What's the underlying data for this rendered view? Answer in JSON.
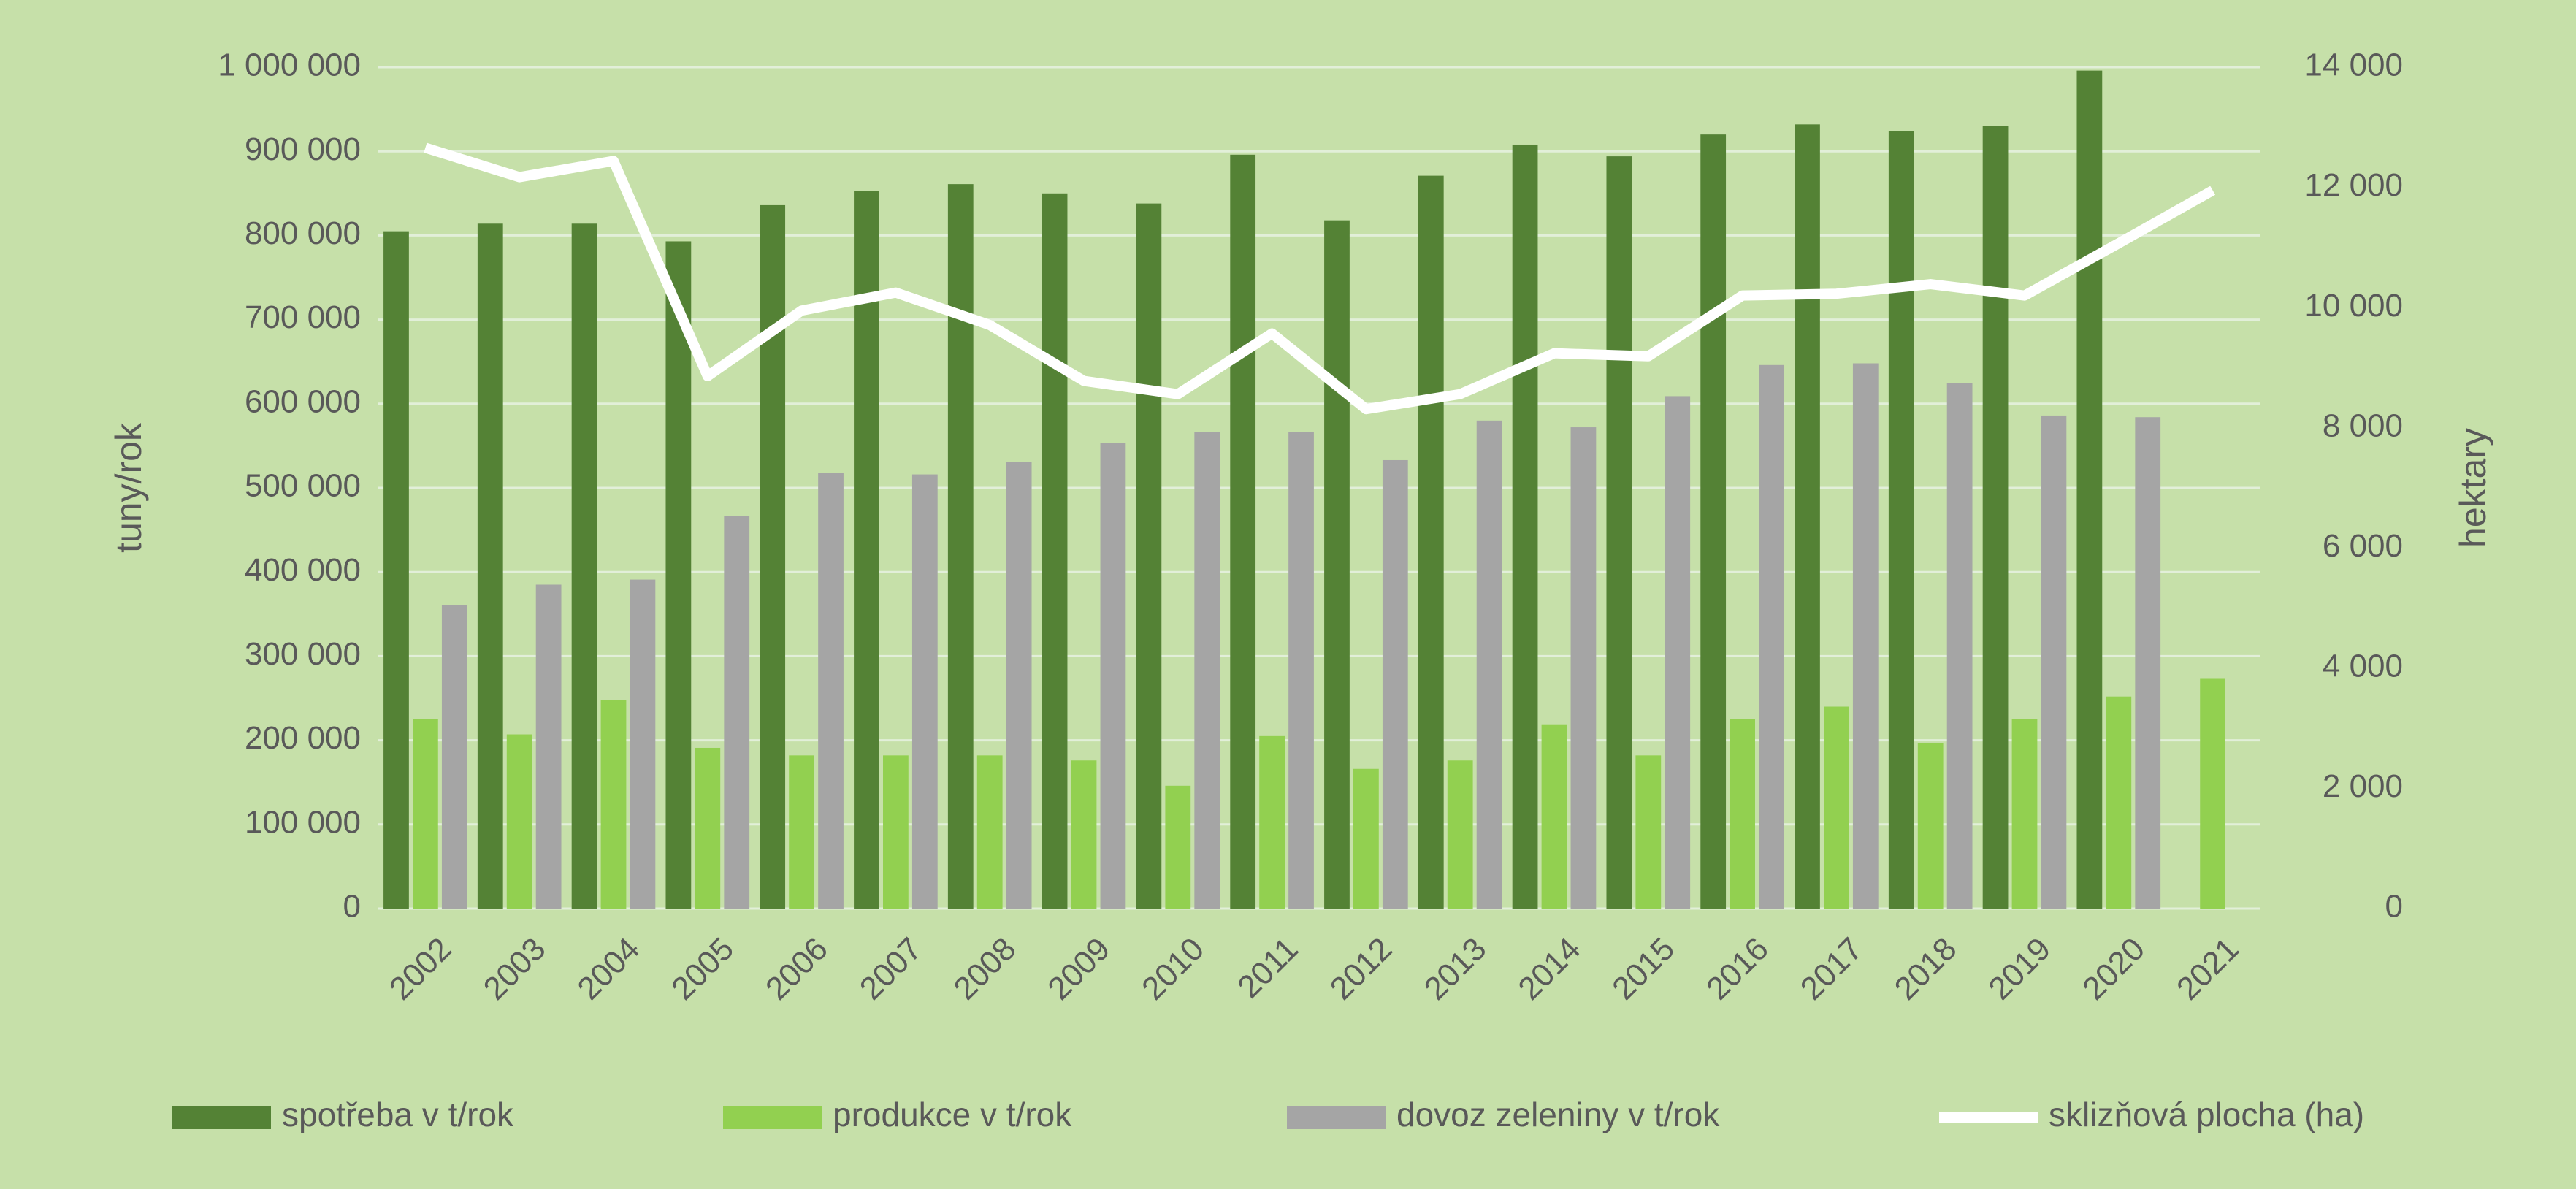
{
  "chart_data": {
    "type": "bar",
    "categories": [
      "2002",
      "2003",
      "2004",
      "2005",
      "2006",
      "2007",
      "2008",
      "2009",
      "2010",
      "2011",
      "2012",
      "2013",
      "2014",
      "2015",
      "2016",
      "2017",
      "2018",
      "2019",
      "2020",
      "2021"
    ],
    "series": [
      {
        "name": "spotřeba v t/rok",
        "color": "#548235",
        "type": "bar",
        "values": [
          805000,
          814000,
          814000,
          793000,
          836000,
          853000,
          861000,
          850000,
          838000,
          896000,
          818000,
          871000,
          908000,
          894000,
          920000,
          932000,
          924000,
          930000,
          996000,
          null
        ]
      },
      {
        "name": "produkce  v t/rok",
        "color": "#92d050",
        "type": "bar",
        "values": [
          225000,
          207000,
          248000,
          191000,
          182000,
          182000,
          182000,
          176000,
          146000,
          205000,
          166000,
          176000,
          219000,
          182000,
          225000,
          240000,
          197000,
          225000,
          252000,
          273000
        ]
      },
      {
        "name": "dovoz zeleniny v t/rok",
        "color": "#a5a5a5",
        "type": "bar",
        "values": [
          361000,
          385000,
          391000,
          467000,
          518000,
          516000,
          531000,
          553000,
          566000,
          566000,
          533000,
          580000,
          572000,
          609000,
          646000,
          648000,
          625000,
          586000,
          584000,
          null
        ]
      },
      {
        "name": "sklizňová plocha (ha)",
        "color": "#ffffff",
        "type": "line",
        "axis": "y2",
        "values": [
          12660,
          12170,
          12440,
          8860,
          9950,
          10250,
          9710,
          8780,
          8560,
          9570,
          8310,
          8560,
          9240,
          9190,
          10200,
          10230,
          10390,
          10200,
          11070,
          11950
        ]
      }
    ],
    "ylabel": "tuny/rok",
    "y2label": "hektary",
    "ylim": [
      0,
      1000000
    ],
    "yticks": [
      0,
      {
        "value": 100000,
        "label": "100 000"
      },
      {
        "value": 200000,
        "label": "200 000"
      },
      {
        "value": 300000,
        "label": "300 000"
      },
      {
        "value": 400000,
        "label": "400 000"
      },
      {
        "value": 500000,
        "label": "500 000"
      },
      {
        "value": 600000,
        "label": "600 000"
      },
      {
        "value": 700000,
        "label": "700 000"
      },
      {
        "value": 800000,
        "label": "800 000"
      },
      {
        "value": 900000,
        "label": "900 000"
      },
      {
        "value": 1000000,
        "label": "1 000 000"
      }
    ],
    "y2lim": [
      0,
      14000
    ],
    "y2ticks": [
      0,
      {
        "value": 2000,
        "label": "2 000"
      },
      {
        "value": 4000,
        "label": "4 000"
      },
      {
        "value": 6000,
        "label": "6 000"
      },
      {
        "value": 8000,
        "label": "8 000"
      },
      {
        "value": 10000,
        "label": "10 000"
      },
      {
        "value": 12000,
        "label": "12 000"
      },
      {
        "value": 14000,
        "label": "14 000"
      }
    ],
    "grid": true,
    "legend": "bottom",
    "background": "#c6e0a9"
  }
}
